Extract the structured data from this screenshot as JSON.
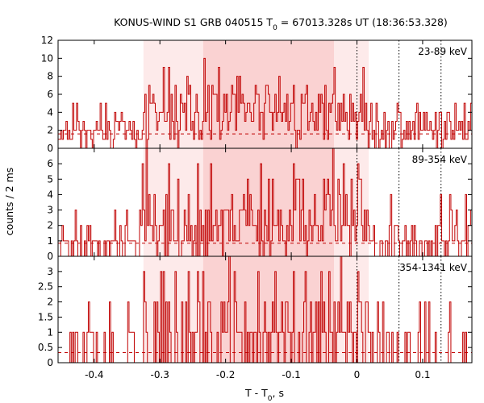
{
  "chart_data": {
    "type": "line",
    "title": {
      "main": "KONUS-WIND S1 GRB 040515 T",
      "sub": "0",
      "rest": " = 67013.328s UT (18:36:53.328)"
    },
    "xlabel": {
      "main": "T - T",
      "sub": "0",
      "rest": ", s"
    },
    "ylabel": "counts / 2 ms",
    "xlim": [
      -0.455,
      0.175
    ],
    "xticks": [
      -0.4,
      -0.3,
      -0.2,
      -0.1,
      0,
      0.1
    ],
    "xtick_labels": [
      "-0.4",
      "-0.3",
      "-0.2",
      "-0.1",
      "0",
      "0.1"
    ],
    "shaded_regions": [
      {
        "x0": -0.325,
        "x1": 0.018,
        "shade": "light"
      },
      {
        "x0": -0.234,
        "x1": -0.035,
        "shade": "medium"
      }
    ],
    "vlines": [
      0,
      0.064,
      0.128
    ],
    "colors": {
      "step": "#c00000",
      "shade_light": "#fdeaea",
      "shade_medium": "#fad2d2",
      "background_level": "#c00000",
      "frame": "#000000"
    },
    "panels": [
      {
        "name": "23-89 keV",
        "ylim": [
          0,
          12
        ],
        "yticks": [
          0,
          2,
          4,
          6,
          8,
          10,
          12
        ],
        "ytick_labels": [
          "0",
          "2",
          "4",
          "6",
          "8",
          "10",
          "12"
        ],
        "background": 1.6,
        "mean": 2.4,
        "bump": 1.3,
        "seed": 11,
        "peaks": [
          [
            -0.244,
            6
          ],
          [
            -0.233,
            10
          ],
          [
            -0.226,
            7
          ],
          [
            -0.187,
            6
          ],
          [
            -0.153,
            6
          ],
          [
            -0.083,
            5
          ],
          [
            -0.01,
            6
          ],
          [
            0.03,
            5
          ]
        ]
      },
      {
        "name": "89-354 keV",
        "ylim": [
          0,
          7
        ],
        "yticks": [
          0,
          1,
          2,
          3,
          4,
          5,
          6
        ],
        "ytick_labels": [
          "0",
          "1",
          "2",
          "3",
          "4",
          "5",
          "6"
        ],
        "background": 0.85,
        "mean": 0.9,
        "bump": 1.4,
        "seed": 23,
        "peaks": [
          [
            -0.326,
            6
          ],
          [
            -0.273,
            5
          ],
          [
            -0.223,
            6
          ],
          [
            -0.173,
            4
          ],
          [
            -0.146,
            6
          ],
          [
            -0.135,
            5
          ],
          [
            -0.093,
            5
          ],
          [
            0.001,
            6
          ],
          [
            0.006,
            5
          ],
          [
            0.141,
            4
          ]
        ]
      },
      {
        "name": "354-1341 keV",
        "ylim": [
          0,
          3.5
        ],
        "yticks": [
          0,
          0.5,
          1,
          1.5,
          2,
          2.5,
          3
        ],
        "ytick_labels": [
          "0",
          "0.5",
          "1",
          "1.5",
          "2",
          "2.5",
          "3"
        ],
        "background": 0.33,
        "mean": 0.35,
        "bump": 0.5,
        "seed": 37,
        "peaks": [
          [
            -0.408,
            2
          ],
          [
            -0.324,
            3
          ],
          [
            -0.305,
            2
          ],
          [
            -0.235,
            3
          ],
          [
            -0.196,
            2
          ],
          [
            -0.107,
            2
          ],
          [
            -0.079,
            3
          ],
          [
            0.002,
            3
          ],
          [
            0.095,
            2
          ],
          [
            0.141,
            2
          ]
        ]
      }
    ],
    "grid": false
  }
}
